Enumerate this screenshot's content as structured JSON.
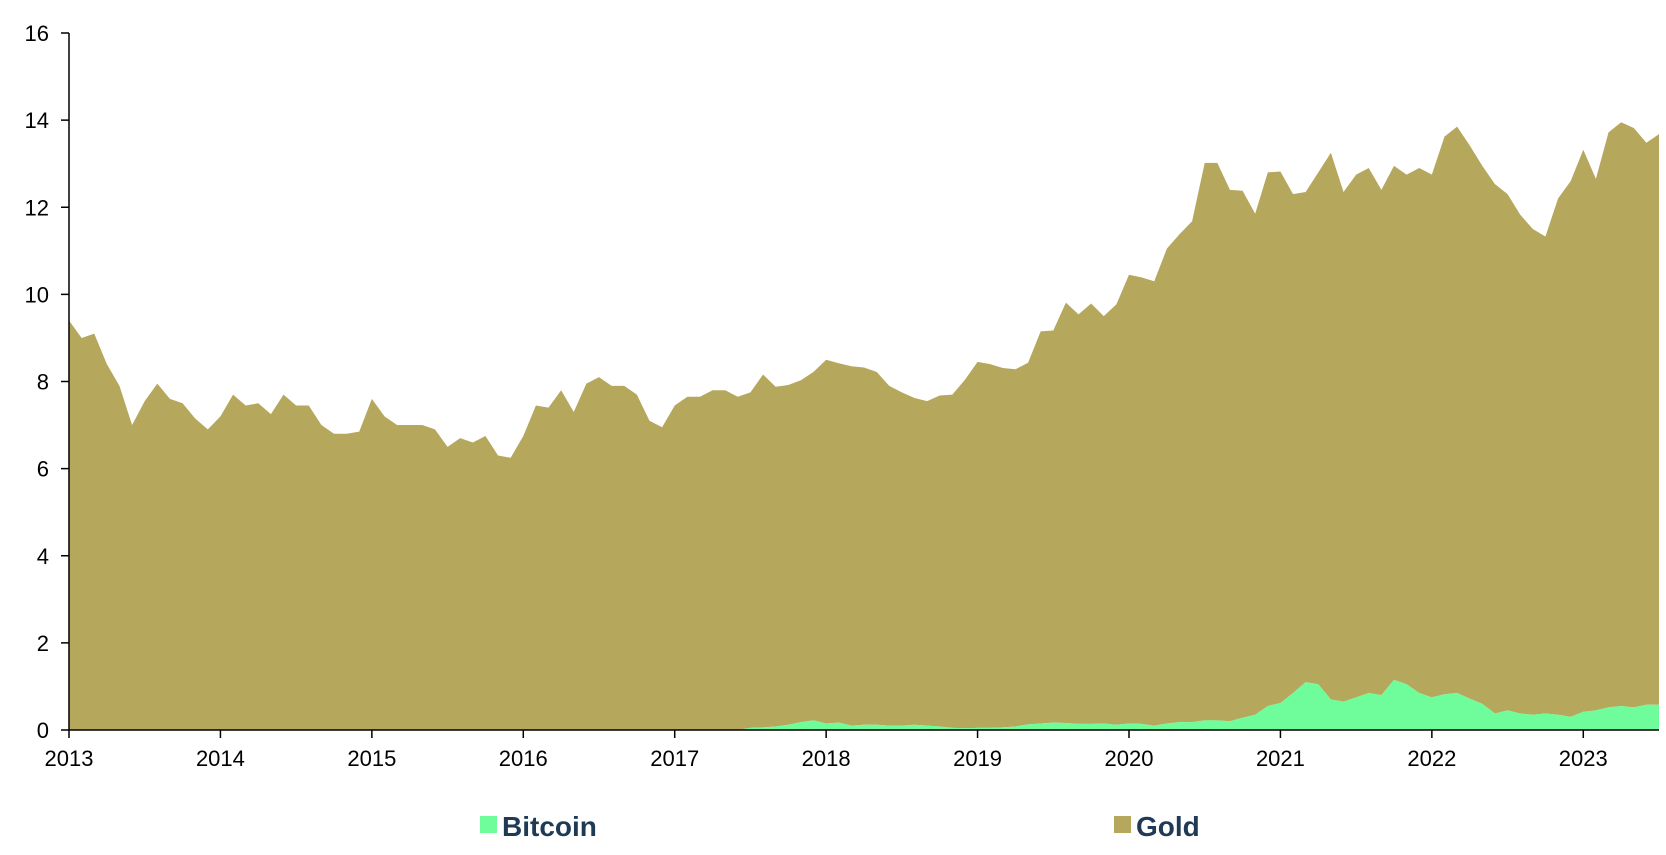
{
  "chart_data": {
    "type": "area",
    "stacked": true,
    "x_start": "2013-01",
    "x_step": "month",
    "x_ticks": [
      "2013",
      "2014",
      "2015",
      "2016",
      "2017",
      "2018",
      "2019",
      "2020",
      "2021",
      "2022",
      "2023"
    ],
    "y_ticks": [
      "0",
      "2",
      "4",
      "6",
      "8",
      "10",
      "12",
      "14",
      "16"
    ],
    "ylim": [
      0,
      16
    ],
    "xlim": [
      "2013-01",
      "2023-07"
    ],
    "legend": "bottom",
    "grid": false,
    "series": [
      {
        "name": "Bitcoin",
        "color": "#6ffc9b",
        "values": [
          0,
          0,
          0,
          0,
          0,
          0,
          0,
          0,
          0,
          0,
          0,
          0,
          0,
          0,
          0,
          0,
          0,
          0,
          0,
          0,
          0,
          0,
          0,
          0,
          0,
          0,
          0,
          0,
          0,
          0,
          0,
          0,
          0,
          0,
          0,
          0,
          0,
          0,
          0,
          0,
          0,
          0,
          0,
          0,
          0,
          0,
          0,
          0,
          0,
          0,
          0,
          0,
          0,
          0,
          0.05,
          0.06,
          0.08,
          0.12,
          0.18,
          0.22,
          0.15,
          0.17,
          0.1,
          0.12,
          0.12,
          0.1,
          0.1,
          0.12,
          0.1,
          0.08,
          0.05,
          0.04,
          0.05,
          0.05,
          0.06,
          0.08,
          0.13,
          0.15,
          0.17,
          0.16,
          0.14,
          0.14,
          0.15,
          0.12,
          0.15,
          0.14,
          0.1,
          0.15,
          0.18,
          0.18,
          0.22,
          0.22,
          0.2,
          0.28,
          0.35,
          0.55,
          0.62,
          0.85,
          1.1,
          1.05,
          0.7,
          0.65,
          0.75,
          0.85,
          0.8,
          1.15,
          1.05,
          0.85,
          0.75,
          0.82,
          0.85,
          0.72,
          0.6,
          0.38,
          0.45,
          0.38,
          0.35,
          0.38,
          0.35,
          0.3,
          0.42,
          0.45,
          0.52,
          0.55,
          0.52,
          0.58,
          0.58
        ]
      },
      {
        "name": "Gold",
        "color": "#b5a85d",
        "values": [
          9.4,
          9.0,
          9.1,
          8.4,
          7.9,
          7.0,
          7.55,
          7.95,
          7.6,
          7.5,
          7.15,
          6.9,
          7.2,
          7.7,
          7.45,
          7.5,
          7.25,
          7.7,
          7.45,
          7.45,
          7.0,
          6.8,
          6.8,
          6.85,
          7.6,
          7.2,
          7.0,
          7.0,
          7.0,
          6.9,
          6.5,
          6.7,
          6.6,
          6.75,
          6.3,
          6.25,
          6.75,
          7.45,
          7.4,
          7.8,
          7.3,
          7.95,
          8.1,
          7.9,
          7.9,
          7.7,
          7.1,
          6.95,
          7.45,
          7.65,
          7.65,
          7.8,
          7.8,
          7.65,
          7.7,
          8.1,
          7.8,
          7.8,
          7.85,
          8.0,
          8.35,
          8.25,
          8.25,
          8.2,
          8.1,
          7.8,
          7.65,
          7.5,
          7.45,
          7.6,
          7.65,
          8.0,
          8.4,
          8.35,
          8.25,
          8.2,
          8.3,
          9.0,
          9.0,
          9.65,
          9.4,
          9.65,
          9.35,
          9.65,
          10.3,
          10.25,
          10.2,
          10.9,
          11.2,
          11.5,
          12.8,
          12.8,
          12.2,
          12.1,
          11.5,
          12.25,
          12.2,
          11.45,
          11.25,
          11.75,
          12.55,
          11.7,
          12.0,
          12.05,
          11.6,
          11.8,
          11.7,
          12.05,
          12.0,
          12.8,
          13.0,
          12.7,
          12.35,
          12.15,
          11.85,
          11.45,
          11.15,
          10.95,
          11.85,
          12.3,
          12.9,
          12.2,
          13.2,
          13.4,
          13.3,
          12.9,
          13.1
        ]
      }
    ]
  }
}
